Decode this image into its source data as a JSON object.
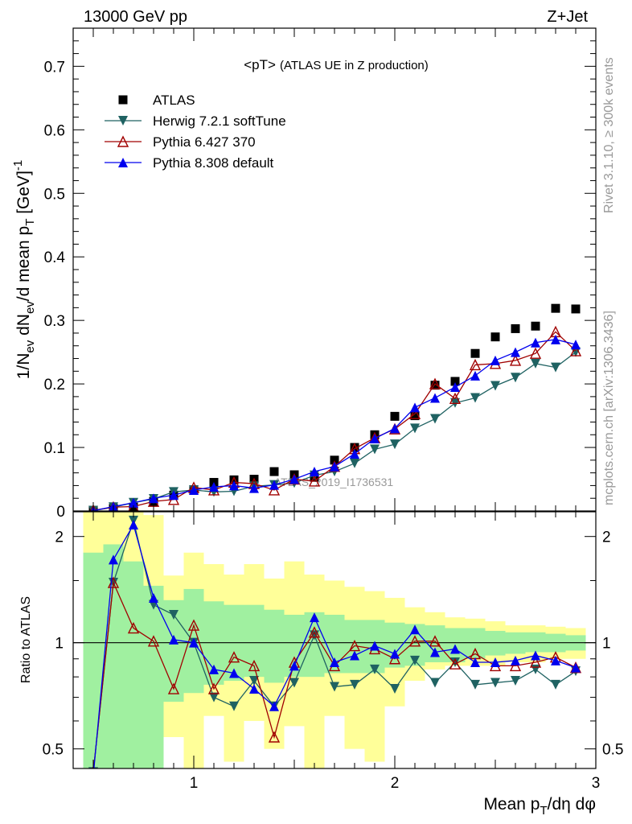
{
  "header": {
    "left": "13000 GeV pp",
    "right": "Z+Jet"
  },
  "side_labels": {
    "top": "Rivet 3.1.10, ≥ 300k events",
    "bottom": "mcplots.cern.ch [arXiv:1306.3436]"
  },
  "watermark": "ATLAS_2019_I1736531",
  "colors": {
    "atlas": "#000000",
    "herwig": "#1f6262",
    "pythia6": "#a00000",
    "pythia8": "#0000ee",
    "band_stat": "#a0f0a0",
    "band_total": "#ffff99"
  },
  "chart_data": [
    {
      "type": "scatter",
      "panel": "main",
      "title": "<pT>",
      "subtitle": "(ATLAS UE in Z production)",
      "xlabel": "Mean p_T/dη dφ",
      "ylabel": "1/N_ev dN_ev/d mean p_T [GeV]^-1",
      "xlim": [
        0.4,
        3.0
      ],
      "ylim": [
        0,
        0.76
      ],
      "yticks": [
        0,
        0.1,
        0.2,
        0.3,
        0.4,
        0.5,
        0.6,
        0.7
      ],
      "ytick_labels": [
        "0",
        "0.1",
        "0.2",
        "0.3",
        "0.4",
        "0.5",
        "0.6",
        "0.7"
      ],
      "legend_position": "top-left",
      "x": [
        0.5,
        0.6,
        0.7,
        0.8,
        0.9,
        1.0,
        1.1,
        1.2,
        1.3,
        1.4,
        1.5,
        1.6,
        1.7,
        1.8,
        1.9,
        2.0,
        2.1,
        2.2,
        2.3,
        2.4,
        2.5,
        2.6,
        2.7,
        2.8,
        2.9
      ],
      "series": [
        {
          "name": "ATLAS",
          "marker": "square",
          "values": [
            0.001,
            0.004,
            0.006,
            0.015,
            0.025,
            0.033,
            0.045,
            0.049,
            0.05,
            0.062,
            0.057,
            0.053,
            0.08,
            0.1,
            0.12,
            0.149,
            0.15,
            0.198,
            0.204,
            0.248,
            0.274,
            0.287,
            0.291,
            0.319,
            0.318
          ]
        },
        {
          "name": "Herwig 7.2.1 softTune",
          "marker": "triangle-down",
          "values": [
            0.0005,
            0.006,
            0.013,
            0.019,
            0.03,
            0.033,
            0.03,
            0.031,
            0.039,
            0.041,
            0.044,
            0.056,
            0.062,
            0.075,
            0.097,
            0.105,
            0.13,
            0.145,
            0.17,
            0.178,
            0.197,
            0.21,
            0.232,
            0.226,
            0.25
          ]
        },
        {
          "name": "Pythia 6.427 370",
          "marker": "triangle-open",
          "values": [
            0.001,
            0.006,
            0.007,
            0.015,
            0.018,
            0.037,
            0.033,
            0.045,
            0.043,
            0.033,
            0.05,
            0.047,
            0.07,
            0.098,
            0.115,
            0.129,
            0.153,
            0.2,
            0.177,
            0.23,
            0.232,
            0.237,
            0.248,
            0.282,
            0.252
          ]
        },
        {
          "name": "Pythia 8.308 default",
          "marker": "triangle-up",
          "values": [
            0.0004,
            0.007,
            0.013,
            0.02,
            0.025,
            0.033,
            0.038,
            0.04,
            0.036,
            0.041,
            0.05,
            0.062,
            0.07,
            0.09,
            0.114,
            0.13,
            0.163,
            0.178,
            0.195,
            0.213,
            0.237,
            0.25,
            0.265,
            0.27,
            0.262
          ]
        }
      ]
    },
    {
      "type": "line",
      "panel": "ratio",
      "ylabel": "Ratio to ATLAS",
      "yscale": "log",
      "xlim": [
        0.4,
        3.0
      ],
      "ylim": [
        0.44,
        2.35
      ],
      "xticks": [
        1,
        2,
        3
      ],
      "xtick_labels": [
        "1",
        "2",
        "3"
      ],
      "yticks": [
        0.5,
        1,
        2
      ],
      "ytick_labels": [
        "0.5",
        "1",
        "2"
      ],
      "reference_line": 1,
      "x": [
        0.5,
        0.6,
        0.7,
        0.8,
        0.9,
        1.0,
        1.1,
        1.2,
        1.3,
        1.4,
        1.5,
        1.6,
        1.7,
        1.8,
        1.9,
        2.0,
        2.1,
        2.2,
        2.3,
        2.4,
        2.5,
        2.6,
        2.7,
        2.8,
        2.9
      ],
      "bands": {
        "stat_lo": [
          0.3,
          0.3,
          0.3,
          0.3,
          0.68,
          0.72,
          0.76,
          0.78,
          0.8,
          0.77,
          0.8,
          0.8,
          0.82,
          0.82,
          0.82,
          0.85,
          0.86,
          0.88,
          0.88,
          0.9,
          0.92,
          0.93,
          0.94,
          0.94,
          0.95
        ],
        "stat_hi": [
          1.8,
          1.9,
          1.7,
          1.45,
          1.32,
          1.42,
          1.31,
          1.28,
          1.28,
          1.24,
          1.2,
          1.22,
          1.2,
          1.16,
          1.16,
          1.14,
          1.13,
          1.12,
          1.1,
          1.1,
          1.08,
          1.07,
          1.07,
          1.06,
          1.05
        ],
        "tot_lo": [
          0.3,
          0.3,
          0.3,
          0.3,
          0.54,
          0.4,
          0.62,
          0.46,
          0.6,
          0.5,
          0.58,
          0.44,
          0.62,
          0.5,
          0.46,
          0.66,
          0.78,
          0.84,
          0.86,
          0.86,
          0.86,
          0.88,
          0.88,
          0.9,
          0.9
        ],
        "tot_hi": [
          2.5,
          2.5,
          2.4,
          2.3,
          1.55,
          1.8,
          1.67,
          1.56,
          1.67,
          1.52,
          1.7,
          1.56,
          1.5,
          1.44,
          1.4,
          1.34,
          1.26,
          1.22,
          1.18,
          1.17,
          1.15,
          1.12,
          1.12,
          1.11,
          1.1
        ]
      },
      "series": [
        {
          "name": "Herwig 7.2.1 softTune",
          "values": [
            0.43,
            1.48,
            2.22,
            1.28,
            1.2,
            1.0,
            0.7,
            0.66,
            0.78,
            0.66,
            0.77,
            1.05,
            0.75,
            0.76,
            0.84,
            0.74,
            0.89,
            0.77,
            0.88,
            0.76,
            0.77,
            0.78,
            0.84,
            0.76,
            0.83
          ]
        },
        {
          "name": "Pythia 6.427 370",
          "values": [
            0.43,
            1.48,
            1.1,
            1.01,
            0.74,
            1.12,
            0.74,
            0.91,
            0.86,
            0.54,
            0.88,
            1.07,
            0.86,
            0.98,
            0.96,
            0.9,
            1.01,
            1.01,
            0.87,
            0.93,
            0.86,
            0.86,
            0.88,
            0.91,
            0.85
          ]
        },
        {
          "name": "Pythia 8.308 default",
          "values": [
            0.42,
            1.72,
            2.16,
            1.34,
            1.02,
            1.0,
            0.84,
            0.82,
            0.74,
            0.66,
            0.86,
            1.18,
            0.88,
            0.92,
            0.98,
            0.93,
            1.09,
            0.94,
            0.96,
            0.88,
            0.88,
            0.89,
            0.92,
            0.89,
            0.85
          ]
        }
      ]
    }
  ]
}
